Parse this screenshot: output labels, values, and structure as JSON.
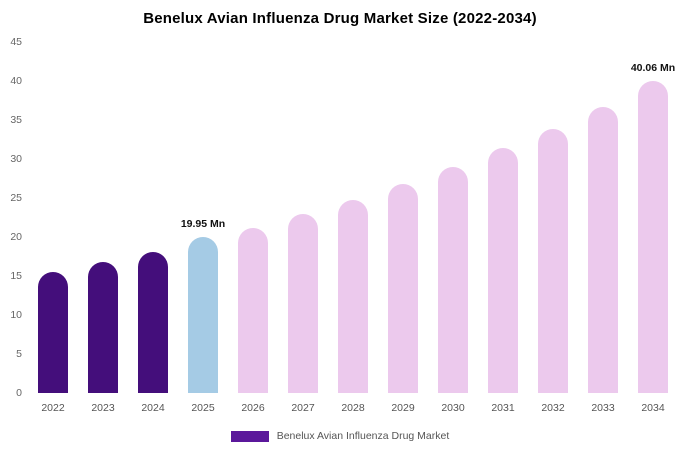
{
  "chart": {
    "title": "Benelux Avian Influenza Drug Market Size (2022-2034)"
  },
  "legend": {
    "label": "Benelux Avian Influenza Drug Market",
    "swatch_color": "#5b189b"
  },
  "chart_data": {
    "type": "bar",
    "title": "Benelux Avian Influenza Drug Market Size (2022-2034)",
    "xlabel": "",
    "ylabel": "",
    "categories": [
      "2022",
      "2023",
      "2024",
      "2025",
      "2026",
      "2027",
      "2028",
      "2029",
      "2030",
      "2031",
      "2032",
      "2033",
      "2034"
    ],
    "values": [
      15.5,
      16.8,
      18.1,
      19.95,
      21.2,
      22.9,
      24.8,
      26.8,
      29.0,
      31.4,
      33.9,
      36.7,
      40.06
    ],
    "unit": "Mn",
    "ylim": [
      0,
      45
    ],
    "yticks": [
      0,
      5,
      10,
      15,
      20,
      25,
      30,
      35,
      40,
      45
    ],
    "grid": false,
    "legend_position": "bottom",
    "colors": [
      "#440e7b",
      "#440e7b",
      "#440e7b",
      "#a5cbe5",
      "#ecc9ed",
      "#ecc9ed",
      "#ecc9ed",
      "#ecc9ed",
      "#ecc9ed",
      "#ecc9ed",
      "#ecc9ed",
      "#ecc9ed",
      "#ecc9ed"
    ],
    "color_groups": {
      "historical": "#440e7b",
      "current_year_highlight": "#a5cbe5",
      "forecast": "#ecc9ed"
    },
    "annotations": [
      {
        "category": "2025",
        "text": "19.95 Mn"
      },
      {
        "category": "2034",
        "text": "40.06 Mn"
      }
    ]
  }
}
